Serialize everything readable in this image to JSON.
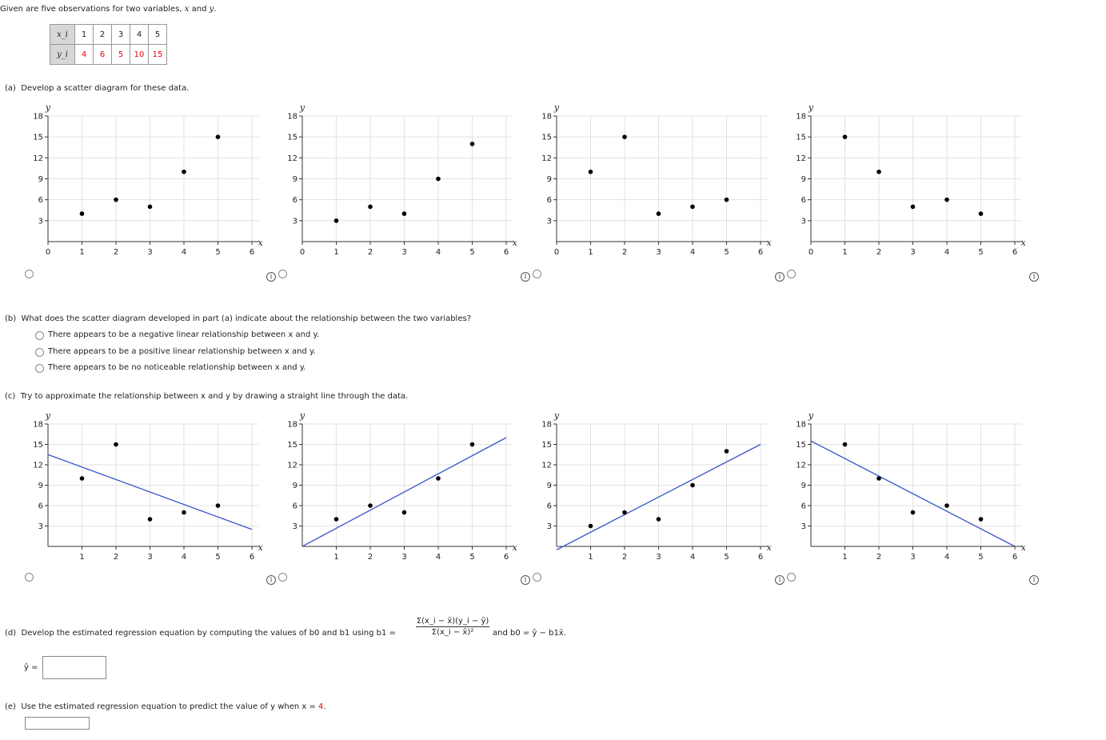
{
  "intro": {
    "before": "Given are five observations for two variables, ",
    "x": "x",
    "mid": " and ",
    "y": "y",
    "after": "."
  },
  "table": {
    "x_header": "x_i",
    "y_header": "y_i",
    "x_values": [
      "1",
      "2",
      "3",
      "4",
      "5"
    ],
    "y_values": [
      "4",
      "6",
      "5",
      "10",
      "15"
    ]
  },
  "part_a": {
    "label": "(a)",
    "text": "Develop a scatter diagram for these data."
  },
  "part_b": {
    "label": "(b)",
    "text": "What does the scatter diagram developed in part (a) indicate about the relationship between the two variables?",
    "options": [
      "There appears to be a negative linear relationship between x and y.",
      "There appears to be a positive linear relationship between x and y.",
      "There appears to be no noticeable relationship between x and y."
    ]
  },
  "part_c": {
    "label": "(c)",
    "text": "Try to approximate the relationship between x and y by drawing a straight line through the data."
  },
  "part_d": {
    "label": "(d)",
    "text": "Develop the estimated regression equation by computing the values of b0 and b1 using b1 =",
    "numerator": "Σ(x_i − x̄)(y_i − ȳ)",
    "denominator": "Σ(x_i − x̄)²",
    "after": "and b0 = ȳ − b1x̄.",
    "yhat_label": "ŷ ="
  },
  "part_e": {
    "label": "(e)",
    "text_before": "Use the estimated regression equation to predict the value of y when x = ",
    "x_value": "4",
    "text_after": "."
  },
  "info_icon": "i",
  "colors": {
    "line": "#3a55c8",
    "points": "#000000",
    "value_red": "#e8000b"
  },
  "chart_data": [
    {
      "type": "scatter",
      "xlabel": "x",
      "ylabel": "y",
      "xlim": [
        0,
        6
      ],
      "ylim": [
        0,
        18
      ],
      "xticks": [
        0,
        1,
        2,
        3,
        4,
        5,
        6
      ],
      "yticks": [
        3,
        6,
        9,
        12,
        15,
        18
      ],
      "x": [
        1,
        2,
        3,
        4,
        5
      ],
      "y": [
        4,
        6,
        5,
        10,
        15
      ]
    },
    {
      "type": "scatter",
      "xlabel": "x",
      "ylabel": "y",
      "xlim": [
        0,
        6
      ],
      "ylim": [
        0,
        18
      ],
      "xticks": [
        0,
        1,
        2,
        3,
        4,
        5,
        6
      ],
      "yticks": [
        3,
        6,
        9,
        12,
        15,
        18
      ],
      "x": [
        1,
        2,
        3,
        4,
        5
      ],
      "y": [
        3,
        5,
        4,
        9,
        14
      ]
    },
    {
      "type": "scatter",
      "xlabel": "x",
      "ylabel": "y",
      "xlim": [
        0,
        6
      ],
      "ylim": [
        0,
        18
      ],
      "xticks": [
        0,
        1,
        2,
        3,
        4,
        5,
        6
      ],
      "yticks": [
        3,
        6,
        9,
        12,
        15,
        18
      ],
      "x": [
        1,
        2,
        3,
        4,
        5
      ],
      "y": [
        10,
        15,
        4,
        5,
        6
      ]
    },
    {
      "type": "scatter",
      "xlabel": "x",
      "ylabel": "y",
      "xlim": [
        0,
        6
      ],
      "ylim": [
        0,
        18
      ],
      "xticks": [
        0,
        1,
        2,
        3,
        4,
        5,
        6
      ],
      "yticks": [
        3,
        6,
        9,
        12,
        15,
        18
      ],
      "x": [
        1,
        2,
        3,
        4,
        5
      ],
      "y": [
        15,
        10,
        5,
        6,
        4
      ]
    },
    {
      "type": "scatter",
      "xlabel": "x",
      "ylabel": "y",
      "xlim": [
        0,
        6
      ],
      "ylim": [
        0,
        18
      ],
      "xticks": [
        1,
        2,
        3,
        4,
        5,
        6
      ],
      "yticks": [
        3,
        6,
        9,
        12,
        15,
        18
      ],
      "x": [
        1,
        2,
        3,
        4,
        5
      ],
      "y": [
        10,
        15,
        4,
        5,
        6
      ],
      "line": [
        [
          0,
          13.5
        ],
        [
          6,
          2.5
        ]
      ]
    },
    {
      "type": "scatter",
      "xlabel": "x",
      "ylabel": "y",
      "xlim": [
        0,
        6
      ],
      "ylim": [
        0,
        18
      ],
      "xticks": [
        1,
        2,
        3,
        4,
        5,
        6
      ],
      "yticks": [
        3,
        6,
        9,
        12,
        15,
        18
      ],
      "x": [
        1,
        2,
        3,
        4,
        5
      ],
      "y": [
        4,
        6,
        5,
        10,
        15
      ],
      "line": [
        [
          0,
          0
        ],
        [
          6,
          16
        ]
      ]
    },
    {
      "type": "scatter",
      "xlabel": "x",
      "ylabel": "y",
      "xlim": [
        0,
        6
      ],
      "ylim": [
        0,
        18
      ],
      "xticks": [
        1,
        2,
        3,
        4,
        5,
        6
      ],
      "yticks": [
        3,
        6,
        9,
        12,
        15,
        18
      ],
      "x": [
        1,
        2,
        3,
        4,
        5
      ],
      "y": [
        3,
        5,
        4,
        9,
        14
      ],
      "line": [
        [
          0,
          -0.5
        ],
        [
          6,
          15
        ]
      ]
    },
    {
      "type": "scatter",
      "xlabel": "x",
      "ylabel": "y",
      "xlim": [
        0,
        6
      ],
      "ylim": [
        0,
        18
      ],
      "xticks": [
        1,
        2,
        3,
        4,
        5,
        6
      ],
      "yticks": [
        3,
        6,
        9,
        12,
        15,
        18
      ],
      "x": [
        1,
        2,
        3,
        4,
        5
      ],
      "y": [
        15,
        10,
        5,
        6,
        4
      ],
      "line": [
        [
          0,
          15.5
        ],
        [
          6,
          0
        ]
      ]
    }
  ]
}
